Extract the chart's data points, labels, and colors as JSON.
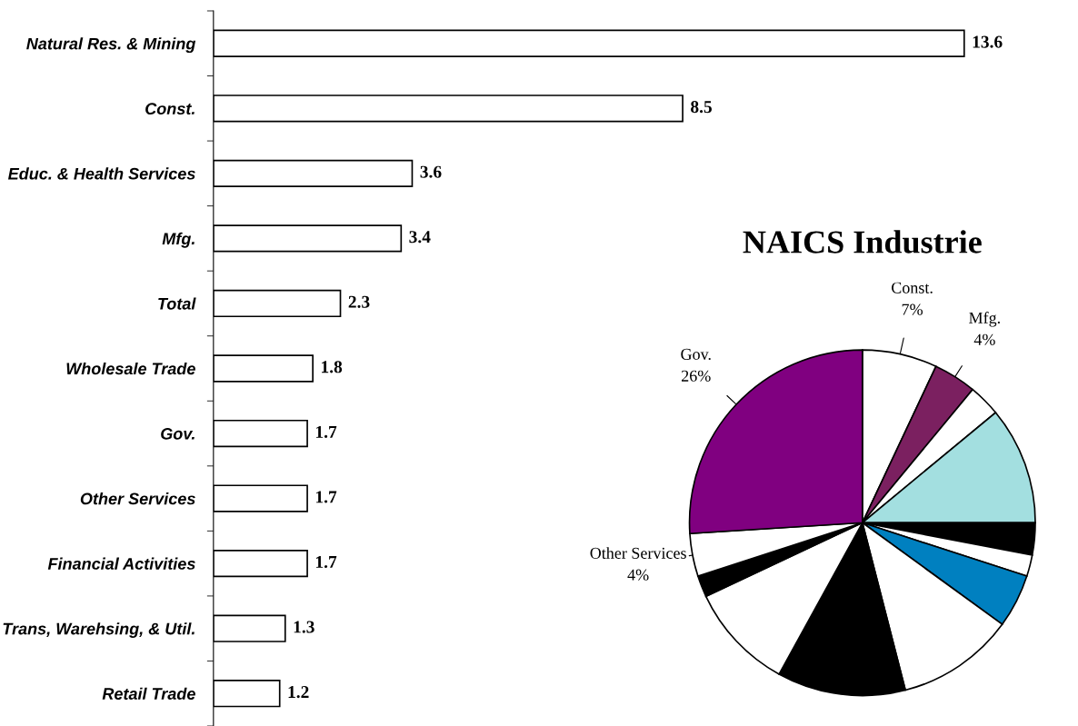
{
  "chart_data": [
    {
      "type": "bar",
      "orientation": "horizontal",
      "data_labels": true,
      "color": "#ffffff",
      "categories": [
        "Natural Res. & Mining",
        "Const.",
        "Educ. & Health Services",
        "Mfg.",
        "Total",
        "Wholesale Trade",
        "Gov.",
        "Other Services",
        "Financial Activities",
        "Trans, Warehsing, & Util.",
        "Retail Trade"
      ],
      "values": [
        13.6,
        8.5,
        3.6,
        3.4,
        2.3,
        1.8,
        1.7,
        1.7,
        1.7,
        1.3,
        1.2
      ]
    },
    {
      "type": "pie",
      "title": "NAICS Industrie",
      "categories": [
        "Const.",
        "Mfg.",
        null,
        null,
        null,
        null,
        null,
        null,
        null,
        null,
        null,
        "Other Services",
        "Gov."
      ],
      "values": [
        7,
        4,
        3,
        11,
        3,
        2,
        5,
        11,
        12,
        10,
        2,
        4,
        26
      ],
      "value_labels": [
        "7%",
        "4%",
        null,
        null,
        null,
        null,
        null,
        null,
        null,
        null,
        null,
        "4%",
        "26%"
      ],
      "colors": [
        "#ffffff",
        "#7b2060",
        "#ffffff",
        "#a3dfe0",
        "#000000",
        "#ffffff",
        "#0080c0",
        "#ffffff",
        "#000000",
        "#ffffff",
        "#000000",
        "#ffffff",
        "#800080"
      ]
    }
  ]
}
